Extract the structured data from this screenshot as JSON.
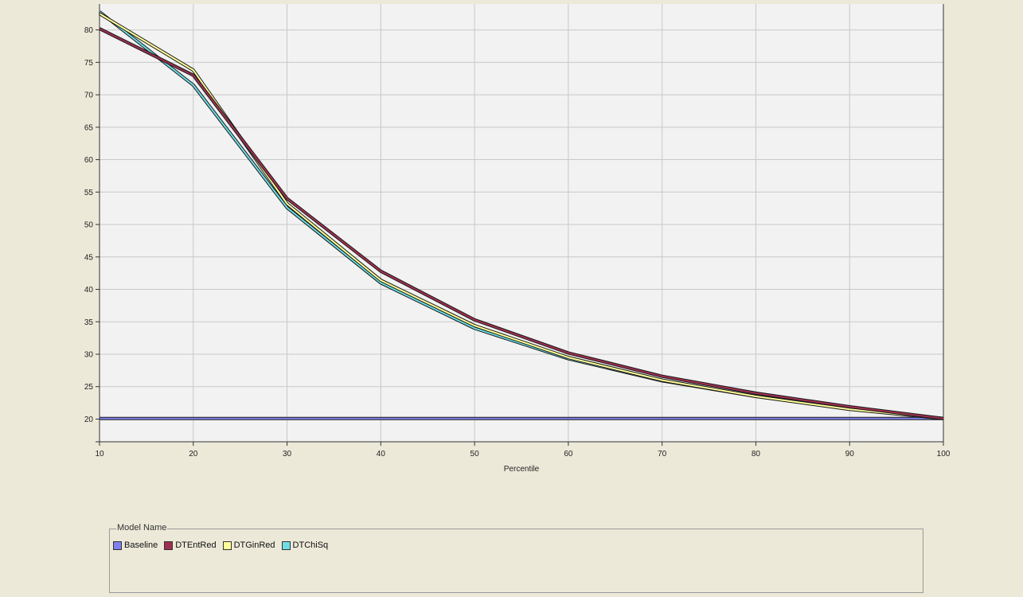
{
  "chart_data": {
    "type": "line",
    "title": "",
    "xlabel": "Percentile",
    "ylabel": "",
    "x": [
      10,
      20,
      30,
      40,
      50,
      60,
      70,
      80,
      90,
      100
    ],
    "xlim": [
      10,
      100
    ],
    "ylim": [
      16.5,
      84
    ],
    "xticks": [
      10,
      20,
      30,
      40,
      50,
      60,
      70,
      80,
      90,
      100
    ],
    "yticks": [
      20,
      25,
      30,
      35,
      40,
      45,
      50,
      55,
      60,
      65,
      70,
      75,
      80
    ],
    "grid": true,
    "legend_title": "Model Name",
    "legend_position": "bottom",
    "series": [
      {
        "name": "Baseline",
        "color": "#7F7FEF",
        "values": [
          20.1,
          20.1,
          20.1,
          20.1,
          20.1,
          20.1,
          20.1,
          20.1,
          20.1,
          20.1
        ]
      },
      {
        "name": "DTEntRed",
        "color": "#A03050",
        "values": [
          80.2,
          73.0,
          54.0,
          42.8,
          35.3,
          30.2,
          26.6,
          24.0,
          21.9,
          20.1
        ]
      },
      {
        "name": "DTGinRed",
        "color": "#FFFF99",
        "values": [
          82.5,
          73.8,
          53.2,
          41.4,
          34.4,
          29.5,
          26.0,
          23.5,
          21.5,
          20.1
        ]
      },
      {
        "name": "DTChiSq",
        "color": "#6FDDE6",
        "values": [
          82.8,
          71.5,
          52.6,
          41.0,
          34.0,
          29.3,
          25.9,
          23.5,
          21.6,
          20.1
        ]
      }
    ]
  }
}
